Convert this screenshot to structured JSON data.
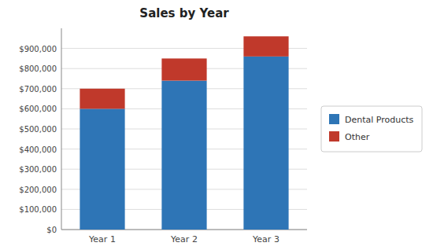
{
  "chart_data": {
    "type": "bar",
    "title": "Sales by Year",
    "categories": [
      "Year 1",
      "Year 2",
      "Year 3"
    ],
    "series": [
      {
        "name": "Dental Products",
        "color": "#2E75B6",
        "values": [
          600000,
          740000,
          860000
        ]
      },
      {
        "name": "Other",
        "color": "#C0392B",
        "values": [
          100000,
          110000,
          100000
        ]
      }
    ],
    "stacked": true,
    "ylim": [
      0,
      1000000
    ],
    "yticks": [
      {
        "value": 0,
        "label": "$0"
      },
      {
        "value": 100000,
        "label": "$100,000"
      },
      {
        "value": 200000,
        "label": "$200,000"
      },
      {
        "value": 300000,
        "label": "$300,000"
      },
      {
        "value": 400000,
        "label": "$400,000"
      },
      {
        "value": 500000,
        "label": "$500,000"
      },
      {
        "value": 600000,
        "label": "$600,000"
      },
      {
        "value": 700000,
        "label": "$700,000"
      },
      {
        "value": 800000,
        "label": "$800,000"
      },
      {
        "value": 900000,
        "label": "$900,000"
      }
    ],
    "grid": true,
    "legend": "right"
  }
}
